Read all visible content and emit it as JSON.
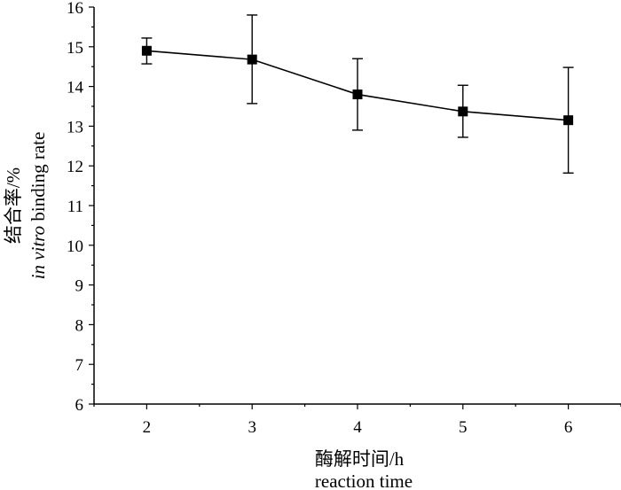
{
  "chart_data": {
    "type": "line",
    "x": [
      2,
      3,
      4,
      5,
      6
    ],
    "series": [
      {
        "values": [
          14.9,
          14.68,
          13.8,
          13.37,
          13.15
        ],
        "error_upper": [
          15.22,
          15.8,
          14.7,
          14.03,
          14.48
        ],
        "error_lower": [
          14.57,
          13.57,
          12.9,
          12.72,
          11.82
        ],
        "marker": "square",
        "color": "#000000"
      }
    ],
    "xlabel_cn": "酶解时间/h",
    "xlabel_en": "reaction time",
    "ylabel_cn": "结合率/%",
    "ylabel_en_italic": "in vitro",
    "ylabel_en": " binding rate",
    "xlim": [
      1.5,
      6.5
    ],
    "ylim": [
      6,
      16
    ],
    "xticks": [
      "2",
      "3",
      "4",
      "5",
      "6"
    ],
    "yticks": [
      "6",
      "7",
      "8",
      "9",
      "10",
      "11",
      "12",
      "13",
      "14",
      "15",
      "16"
    ],
    "grid": false
  }
}
